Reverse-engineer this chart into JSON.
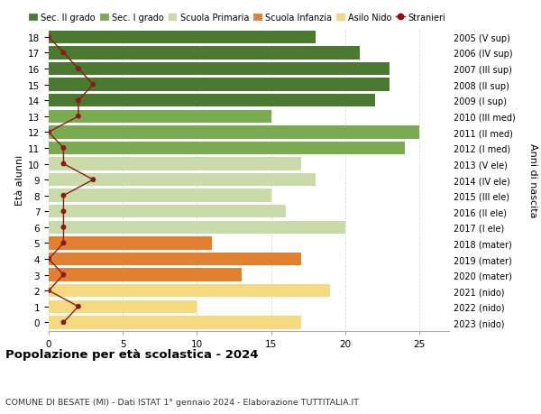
{
  "ages": [
    0,
    1,
    2,
    3,
    4,
    5,
    6,
    7,
    8,
    9,
    10,
    11,
    12,
    13,
    14,
    15,
    16,
    17,
    18
  ],
  "right_labels": [
    "2023 (nido)",
    "2022 (nido)",
    "2021 (nido)",
    "2020 (mater)",
    "2019 (mater)",
    "2018 (mater)",
    "2017 (I ele)",
    "2016 (II ele)",
    "2015 (III ele)",
    "2014 (IV ele)",
    "2013 (V ele)",
    "2012 (I med)",
    "2011 (II med)",
    "2010 (III med)",
    "2009 (I sup)",
    "2008 (II sup)",
    "2007 (III sup)",
    "2006 (IV sup)",
    "2005 (V sup)"
  ],
  "bar_values": [
    17,
    10,
    19,
    13,
    17,
    11,
    20,
    16,
    15,
    18,
    17,
    24,
    25,
    15,
    22,
    23,
    23,
    21,
    18
  ],
  "bar_colors": [
    "#f5d97e",
    "#f5d97e",
    "#f5d97e",
    "#e08030",
    "#e08030",
    "#e08030",
    "#c8dba8",
    "#c8dba8",
    "#c8dba8",
    "#c8dba8",
    "#c8dba8",
    "#7aab50",
    "#7aab50",
    "#7aab50",
    "#4a7a30",
    "#4a7a30",
    "#4a7a30",
    "#4a7a30",
    "#4a7a30"
  ],
  "stranieri_values": [
    1,
    2,
    0,
    1,
    0,
    1,
    1,
    1,
    1,
    3,
    1,
    1,
    0,
    2,
    2,
    3,
    2,
    1,
    0
  ],
  "legend_labels": [
    "Sec. II grado",
    "Sec. I grado",
    "Scuola Primaria",
    "Scuola Infanzia",
    "Asilo Nido",
    "Stranieri"
  ],
  "legend_colors": [
    "#4a7a30",
    "#7aab50",
    "#c8dba8",
    "#e08030",
    "#f5d97e",
    "#a00000"
  ],
  "title": "Popolazione per età scolastica - 2024",
  "subtitle": "COMUNE DI BESATE (MI) - Dati ISTAT 1° gennaio 2024 - Elaborazione TUTTITALIA.IT",
  "right_ylabel": "Anni di nascita",
  "ylabel": "Età alunni",
  "xlim": [
    0,
    27
  ],
  "xticks": [
    0,
    5,
    10,
    15,
    20,
    25
  ],
  "bg_color": "#ffffff",
  "grid_color": "#dddddd"
}
